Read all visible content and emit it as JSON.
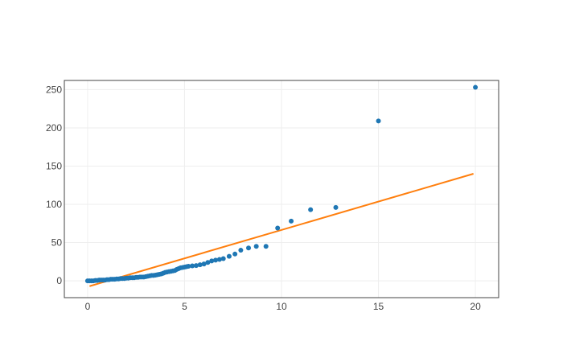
{
  "chart_data": {
    "type": "scatter",
    "title": "",
    "xlabel": "",
    "ylabel": "",
    "xlim": [
      -1.2,
      21.2
    ],
    "ylim": [
      -22,
      262
    ],
    "grid": true,
    "legend": "none",
    "x_ticks": [
      0,
      5,
      10,
      15,
      20
    ],
    "y_ticks": [
      0,
      50,
      100,
      150,
      200,
      250
    ],
    "x_tick_labels": [
      "0",
      "5",
      "10",
      "15",
      "20"
    ],
    "y_tick_labels": [
      "0",
      "50",
      "100",
      "150",
      "200",
      "250"
    ],
    "colors": {
      "points": "#1f77b4",
      "line": "#ff7f0e",
      "grid": "#eeeeee",
      "frame": "#444444"
    },
    "series": [
      {
        "kind": "points",
        "x": [
          0.0,
          0.1,
          0.2,
          0.3,
          0.4,
          0.5,
          0.6,
          0.7,
          0.8,
          0.9,
          1.0,
          1.1,
          1.2,
          1.3,
          1.4,
          1.5,
          1.6,
          1.7,
          1.8,
          1.9,
          2.0,
          2.1,
          2.2,
          2.3,
          2.4,
          2.5,
          2.6,
          2.7,
          2.8,
          2.9,
          3.0,
          3.1,
          3.2,
          3.3,
          3.4,
          3.5,
          3.6,
          3.7,
          3.8,
          3.9,
          4.0,
          4.1,
          4.2,
          4.3,
          4.4,
          4.5,
          4.6,
          4.7,
          4.8,
          4.9,
          5.0,
          5.1,
          5.2,
          5.4,
          5.6,
          5.8,
          6.0,
          6.2,
          6.4,
          6.6,
          6.8,
          7.0,
          7.3,
          7.6,
          7.9,
          8.3,
          8.7,
          9.2,
          9.8,
          10.5,
          11.5,
          12.8,
          15.0,
          20.0
        ],
        "y": [
          0,
          0,
          0,
          0,
          0.5,
          0.5,
          1,
          1,
          1,
          1,
          1.5,
          1.5,
          2,
          2,
          2,
          2.5,
          2.5,
          3,
          3,
          3,
          3.5,
          3.5,
          4,
          4,
          4,
          4.5,
          4.5,
          5,
          5,
          5,
          5.5,
          6,
          6.5,
          7,
          7,
          7.5,
          8,
          8.5,
          9,
          10,
          11,
          11.5,
          12,
          12.5,
          13,
          13.5,
          15,
          16,
          17,
          17.5,
          18,
          18.5,
          19,
          19.5,
          20,
          21,
          22,
          24,
          26,
          27,
          28,
          29,
          32,
          35,
          40,
          43,
          45,
          45,
          69,
          78,
          93,
          96,
          209,
          253
        ]
      },
      {
        "kind": "line",
        "x": [
          0.1,
          19.9
        ],
        "y": [
          -7,
          140
        ]
      }
    ]
  }
}
